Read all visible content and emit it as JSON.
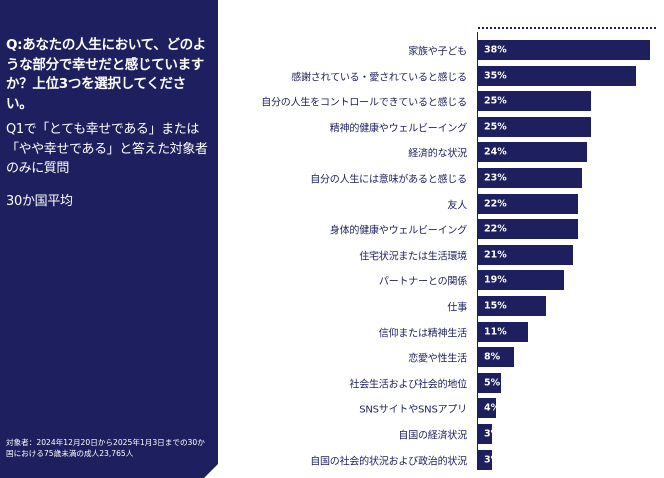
{
  "panel": {
    "question": "Q:あなたの人生において、どのような部分で幸せだと感じていますか？上位3つを選択してください。",
    "subtext": "Q1で「とても幸せである」または「やや幸せである」と答えた対象者のみに質問",
    "average": "30か国平均",
    "note": "対象者：2024年12月20日から2025年1月3日までの30か国における75歳未満の成人23,765人"
  },
  "chart_data": {
    "type": "bar",
    "orientation": "horizontal",
    "categories": [
      "家族や子ども",
      "感謝されている・愛されていると感じる",
      "自分の人生をコントロールできていると感じる",
      "精神的健康やウェルビーイング",
      "経済的な状況",
      "自分の人生には意味があると感じる",
      "友人",
      "身体的健康やウェルビーイング",
      "住宅状況または生活環境",
      "パートナーとの関係",
      "仕事",
      "信仰または精神生活",
      "恋愛や性生活",
      "社会生活および社会的地位",
      "SNSサイトやSNSアプリ",
      "自国の経済状況",
      "自国の社会的状況および政治的状況"
    ],
    "values": [
      38,
      35,
      25,
      25,
      24,
      23,
      22,
      22,
      21,
      19,
      15,
      11,
      8,
      5,
      4,
      3,
      3
    ],
    "value_labels": [
      "38%",
      "35%",
      "25%",
      "25%",
      "24%",
      "23%",
      "22%",
      "22%",
      "21%",
      "19%",
      "15%",
      "11%",
      "8%",
      "5%",
      "4%",
      "3%",
      "3%"
    ],
    "xlim": [
      0,
      40
    ],
    "bar_color": "#1d1f5e",
    "label_color": "#ffffff"
  }
}
